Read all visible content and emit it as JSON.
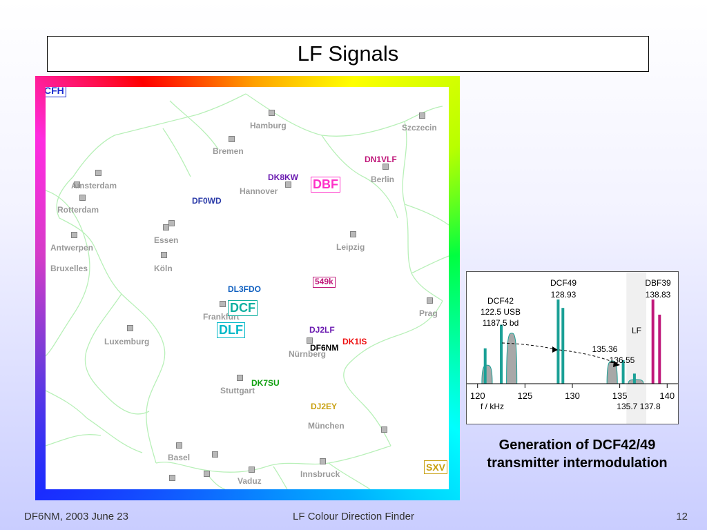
{
  "title": "LF Signals",
  "map": {
    "corners": {
      "top_left": "CFH",
      "bottom_right": "SXV"
    },
    "cities": [
      "Hamburg",
      "Szczecin",
      "Bremen",
      "Amsterdam",
      "Rotterdam",
      "Berlin",
      "Hannover",
      "Essen",
      "Antwerpen",
      "Bruxelles",
      "Köln",
      "Leipzig",
      "Frankfurt",
      "Prag",
      "Luxemburg",
      "Nürnberg",
      "Stuttgart",
      "München",
      "Basel",
      "Vaduz",
      "Innsbruck"
    ],
    "stations": {
      "dn1vlf": "DN1VLF",
      "dk8kw": "DK8KW",
      "df0wd": "DF0WD",
      "dl3fdo": "DL3FDO",
      "dj2lf": "DJ2LF",
      "df6nm": "DF6NM",
      "dk1is": "DK1IS",
      "dk7su": "DK7SU",
      "dj2ey": "DJ2EY"
    },
    "boxed": {
      "dbf": "DBF",
      "k549": "549k",
      "dcf": "DCF",
      "dlf": "DLF"
    },
    "colors": {
      "dn1vlf": "#c0187a",
      "dk8kw": "#6a1ab0",
      "df0wd": "#2a3aa8",
      "dl3fdo": "#1060c0",
      "dj2lf": "#6a1ab0",
      "df6nm": "#000000",
      "dk1is": "#ee1010",
      "dk7su": "#10a010",
      "dj2ey": "#c8a010",
      "dbf": "#ff30c8",
      "k549": "#c0187a",
      "dcf": "#10b0a0",
      "dlf": "#00b8c8",
      "cfh": "#1a2cd0",
      "sxv": "#c8a010",
      "border": "#b8f0b8"
    }
  },
  "chart_data": {
    "type": "bar",
    "xlabel": "f / kHz",
    "xlim": [
      119,
      141
    ],
    "ticks": [
      "120",
      "125",
      "130",
      "135",
      "140"
    ],
    "tick_values": [
      120,
      125,
      130,
      135,
      140
    ],
    "extra_ticks": "135.7 137.8",
    "shaded_band": [
      135.7,
      137.8
    ],
    "shaded_label": "LF",
    "carriers": [
      {
        "f": 120.8,
        "h": 0.42,
        "color": "#1aa096"
      },
      {
        "f": 122.5,
        "h": 0.7,
        "color": "#1aa096"
      },
      {
        "f": 128.5,
        "h": 1.0,
        "color": "#1aa096"
      },
      {
        "f": 129.0,
        "h": 0.9,
        "color": "#1aa096"
      },
      {
        "f": 135.36,
        "h": 0.28,
        "color": "#1aa096"
      },
      {
        "f": 136.55,
        "h": 0.12,
        "color": "#1aa096"
      },
      {
        "f": 138.5,
        "h": 1.0,
        "color": "#c0187a"
      },
      {
        "f": 139.2,
        "h": 0.82,
        "color": "#c0187a"
      }
    ],
    "lobes": [
      {
        "f": 121.0,
        "w": 1.1,
        "h": 0.22
      },
      {
        "f": 123.6,
        "w": 1.1,
        "h": 0.6
      },
      {
        "f": 134.2,
        "w": 1.1,
        "h": 0.27
      },
      {
        "f": 136.7,
        "w": 1.6,
        "h": 0.05
      }
    ],
    "annotations": {
      "dcf42": [
        "DCF42",
        "122.5 USB",
        "1187.5 bd"
      ],
      "dcf49": [
        "DCF49",
        "128.93"
      ],
      "dbf39": [
        "DBF39",
        "138.83"
      ],
      "mix1": "135.36",
      "mix2": "136.55"
    }
  },
  "caption": [
    "Generation of DCF42/49",
    "transmitter intermodulation"
  ],
  "footer": {
    "left": "DF6NM,  2003 June 23",
    "center": "LF Colour Direction Finder",
    "right": "12"
  }
}
